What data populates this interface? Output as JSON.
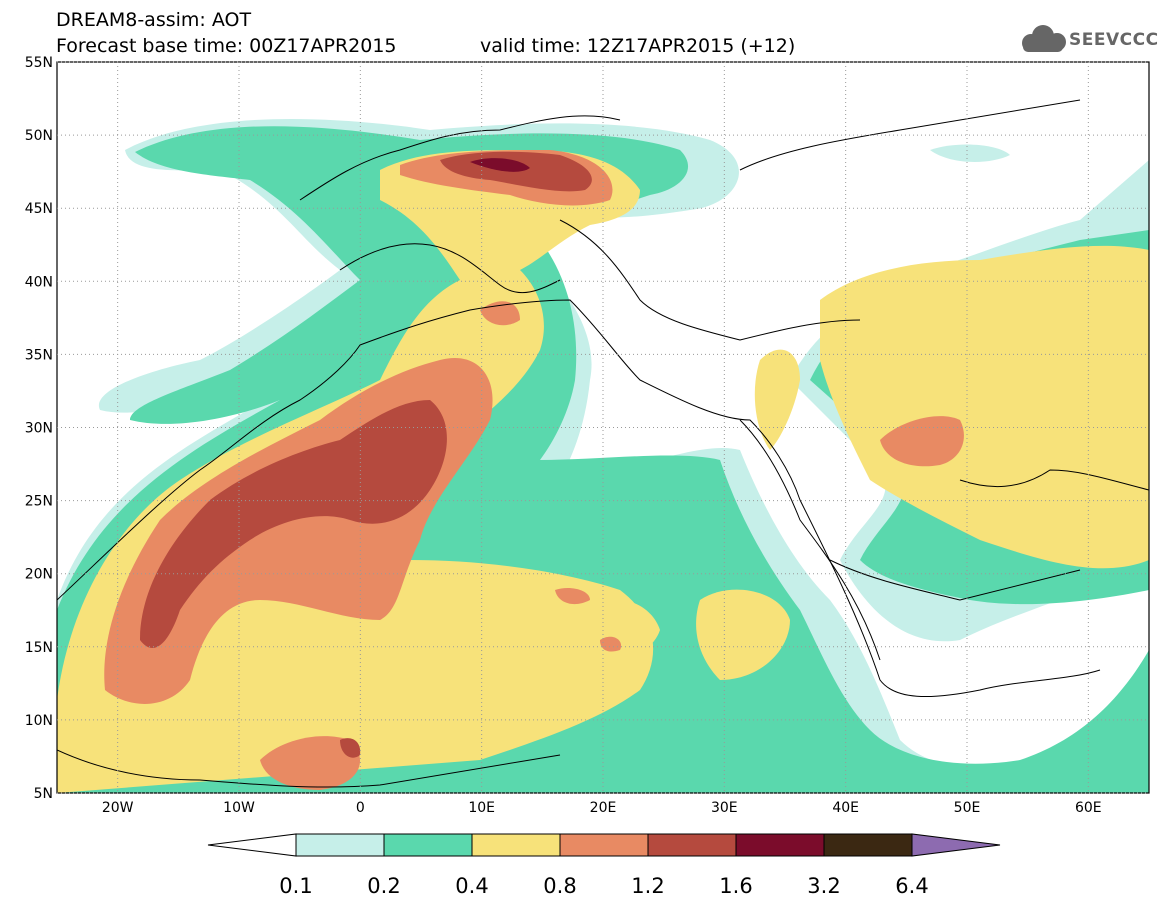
{
  "header": {
    "title_line1": "DREAM8-assim: AOT",
    "title_line2": "Forecast base time: 00Z17APR2015",
    "valid_time": "valid time: 12Z17APR2015 (+12)",
    "logo_text": "SEEVCCC"
  },
  "map": {
    "lon_range": [
      -25,
      65
    ],
    "lat_range": [
      5,
      55
    ],
    "background": "#ffffff",
    "lat_labels": [
      "5N",
      "10N",
      "15N",
      "20N",
      "25N",
      "30N",
      "35N",
      "40N",
      "45N",
      "50N",
      "55N"
    ],
    "lon_labels": [
      "20W",
      "10W",
      "0",
      "10E",
      "20E",
      "30E",
      "40E",
      "50E",
      "60E"
    ]
  },
  "colorbar": {
    "labels": [
      "0.1",
      "0.2",
      "0.4",
      "0.8",
      "1.2",
      "1.6",
      "3.2",
      "6.4"
    ],
    "colors": [
      "#ffffff",
      "#c6efe9",
      "#5ad8ad",
      "#f7e27a",
      "#e88a63",
      "#b54a3e",
      "#7b0c2b",
      "#3b2812",
      "#8d6bb0"
    ]
  }
}
